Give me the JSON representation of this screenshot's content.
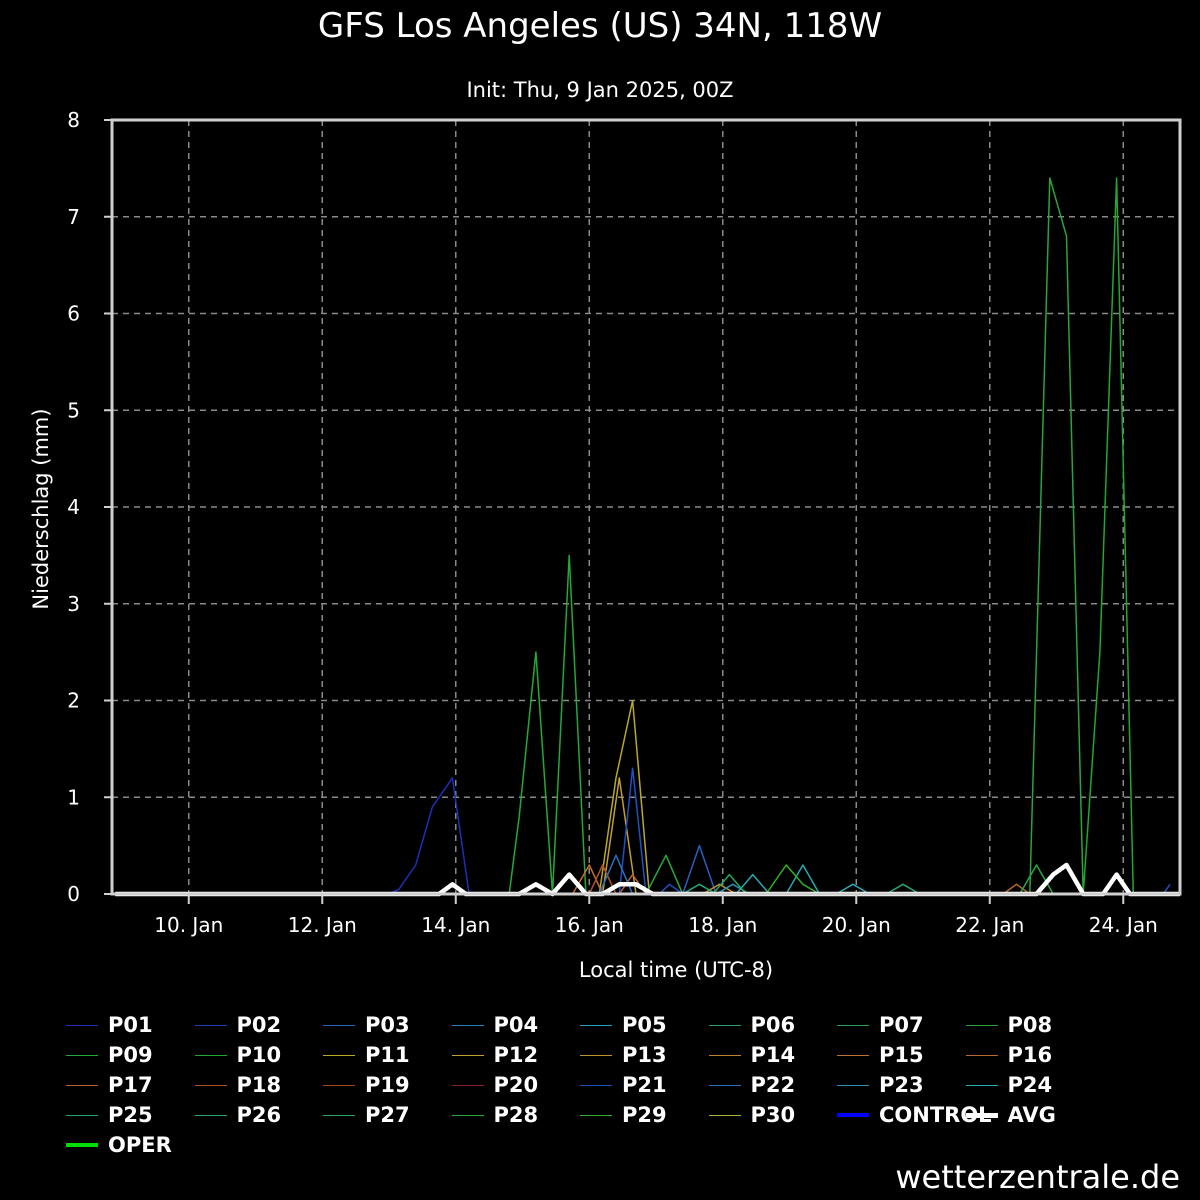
{
  "title": "GFS Los Angeles (US) 34N, 118W",
  "subtitle": "Init: Thu, 9 Jan 2025, 00Z",
  "footer": "wetterzentrale.de",
  "chart_data": {
    "type": "line",
    "title": "GFS Los Angeles (US) 34N, 118W",
    "subtitle": "Init: Thu, 9 Jan 2025, 00Z",
    "xlabel": "Local time (UTC-8)",
    "ylabel": "Niederschlag (mm)",
    "ylim": [
      0,
      8
    ],
    "xlim": [
      8.85,
      24.85
    ],
    "yticks": [
      0,
      1,
      2,
      3,
      4,
      5,
      6,
      7,
      8
    ],
    "xticks": [
      {
        "value": 10,
        "label": "10. Jan"
      },
      {
        "value": 12,
        "label": "12. Jan"
      },
      {
        "value": 14,
        "label": "14. Jan"
      },
      {
        "value": 16,
        "label": "16. Jan"
      },
      {
        "value": 18,
        "label": "18. Jan"
      },
      {
        "value": 20,
        "label": "20. Jan"
      },
      {
        "value": 22,
        "label": "22. Jan"
      },
      {
        "value": 24,
        "label": "24. Jan"
      }
    ],
    "grid": true,
    "legend_position": "bottom",
    "series": [
      {
        "name": "P01",
        "color": "#1c2fb8",
        "width": 1.5,
        "points": [
          [
            8.9,
            0
          ],
          [
            13.0,
            0
          ],
          [
            13.15,
            0.05
          ],
          [
            13.4,
            0.3
          ],
          [
            13.65,
            0.9
          ],
          [
            13.95,
            1.2
          ],
          [
            14.2,
            0
          ],
          [
            24.85,
            0
          ]
        ]
      },
      {
        "name": "P02",
        "color": "#2040c0",
        "width": 1.5,
        "points": [
          [
            8.9,
            0
          ],
          [
            24.85,
            0
          ]
        ]
      },
      {
        "name": "P03",
        "color": "#2a5fbf",
        "width": 1.5,
        "points": [
          [
            8.9,
            0
          ],
          [
            17.4,
            0
          ],
          [
            17.65,
            0.5
          ],
          [
            17.9,
            0
          ],
          [
            24.85,
            0
          ]
        ]
      },
      {
        "name": "P04",
        "color": "#2a7fbf",
        "width": 1.5,
        "points": [
          [
            8.9,
            0
          ],
          [
            24.85,
            0
          ]
        ]
      },
      {
        "name": "P05",
        "color": "#2aa0bf",
        "width": 1.5,
        "points": [
          [
            8.9,
            0
          ],
          [
            24.85,
            0
          ]
        ]
      },
      {
        "name": "P06",
        "color": "#2a9f70",
        "width": 1.5,
        "points": [
          [
            8.9,
            0
          ],
          [
            24.85,
            0
          ]
        ]
      },
      {
        "name": "P07",
        "color": "#2a9f50",
        "width": 1.5,
        "points": [
          [
            8.9,
            0
          ],
          [
            24.85,
            0
          ]
        ]
      },
      {
        "name": "P08",
        "color": "#2ba43a",
        "width": 1.5,
        "points": [
          [
            8.9,
            0
          ],
          [
            22.6,
            0
          ],
          [
            22.9,
            7.4
          ],
          [
            23.15,
            6.8
          ],
          [
            23.4,
            0
          ],
          [
            24.85,
            0
          ]
        ]
      },
      {
        "name": "P09",
        "color": "#24a838",
        "width": 1.5,
        "points": [
          [
            8.9,
            0
          ],
          [
            14.8,
            0
          ],
          [
            14.95,
            0.8
          ],
          [
            15.2,
            2.5
          ],
          [
            15.45,
            0
          ],
          [
            15.7,
            3.5
          ],
          [
            15.95,
            0
          ],
          [
            24.85,
            0
          ]
        ]
      },
      {
        "name": "P10",
        "color": "#20a830",
        "width": 1.5,
        "points": [
          [
            8.9,
            0
          ],
          [
            23.4,
            0
          ],
          [
            23.65,
            2.5
          ],
          [
            23.9,
            7.4
          ],
          [
            24.15,
            0
          ],
          [
            24.85,
            0
          ]
        ]
      },
      {
        "name": "P11",
        "color": "#b8a827",
        "width": 1.5,
        "points": [
          [
            8.9,
            0
          ],
          [
            16.15,
            0
          ],
          [
            16.4,
            1.2
          ],
          [
            16.65,
            2.0
          ],
          [
            16.9,
            0
          ],
          [
            24.85,
            0
          ]
        ]
      },
      {
        "name": "P12",
        "color": "#c0a030",
        "width": 1.5,
        "points": [
          [
            8.9,
            0
          ],
          [
            16.2,
            0
          ],
          [
            16.45,
            1.2
          ],
          [
            16.7,
            0
          ],
          [
            24.85,
            0
          ]
        ]
      },
      {
        "name": "P13",
        "color": "#c09030",
        "width": 1.5,
        "points": [
          [
            8.9,
            0
          ],
          [
            17.7,
            0
          ],
          [
            17.95,
            0.1
          ],
          [
            18.2,
            0
          ],
          [
            24.85,
            0
          ]
        ]
      },
      {
        "name": "P14",
        "color": "#c08030",
        "width": 1.5,
        "points": [
          [
            8.9,
            0
          ],
          [
            24.85,
            0
          ]
        ]
      },
      {
        "name": "P15",
        "color": "#c07030",
        "width": 1.5,
        "points": [
          [
            8.9,
            0
          ],
          [
            15.75,
            0
          ],
          [
            16.0,
            0.3
          ],
          [
            16.2,
            0
          ],
          [
            24.85,
            0
          ]
        ]
      },
      {
        "name": "P16",
        "color": "#b86a30",
        "width": 1.5,
        "points": [
          [
            8.9,
            0
          ],
          [
            22.2,
            0
          ],
          [
            22.4,
            0.1
          ],
          [
            22.6,
            0
          ],
          [
            24.85,
            0
          ]
        ]
      },
      {
        "name": "P17",
        "color": "#b86030",
        "width": 1.5,
        "points": [
          [
            8.9,
            0
          ],
          [
            16.45,
            0
          ],
          [
            16.65,
            0.2
          ],
          [
            16.85,
            0
          ],
          [
            24.85,
            0
          ]
        ]
      },
      {
        "name": "P18",
        "color": "#b05028",
        "width": 1.5,
        "points": [
          [
            8.9,
            0
          ],
          [
            16.0,
            0
          ],
          [
            16.2,
            0.3
          ],
          [
            16.4,
            0
          ],
          [
            24.85,
            0
          ]
        ]
      },
      {
        "name": "P19",
        "color": "#a84020",
        "width": 1.5,
        "points": [
          [
            8.9,
            0
          ],
          [
            24.85,
            0
          ]
        ]
      },
      {
        "name": "P20",
        "color": "#8a2020",
        "width": 1.5,
        "points": [
          [
            8.9,
            0
          ],
          [
            24.85,
            0
          ]
        ]
      },
      {
        "name": "P21",
        "color": "#2050c0",
        "width": 1.5,
        "points": [
          [
            8.9,
            0
          ],
          [
            16.45,
            0
          ],
          [
            16.65,
            1.3
          ],
          [
            16.85,
            0
          ],
          [
            17.05,
            0
          ],
          [
            17.2,
            0.1
          ],
          [
            17.4,
            0
          ],
          [
            24.6,
            0
          ],
          [
            24.7,
            0.1
          ]
        ]
      },
      {
        "name": "P22",
        "color": "#2a70c0",
        "width": 1.5,
        "points": [
          [
            8.9,
            0
          ],
          [
            16.15,
            0
          ],
          [
            16.4,
            0.4
          ],
          [
            16.65,
            0
          ],
          [
            24.85,
            0
          ]
        ]
      },
      {
        "name": "P23",
        "color": "#2a90b0",
        "width": 1.5,
        "points": [
          [
            8.9,
            0
          ],
          [
            17.9,
            0
          ],
          [
            18.15,
            0.1
          ],
          [
            18.4,
            0
          ],
          [
            24.85,
            0
          ]
        ]
      },
      {
        "name": "P24",
        "color": "#28a8b0",
        "width": 1.5,
        "points": [
          [
            8.9,
            0
          ],
          [
            18.2,
            0
          ],
          [
            18.45,
            0.2
          ],
          [
            18.7,
            0
          ],
          [
            18.95,
            0
          ],
          [
            19.2,
            0.3
          ],
          [
            19.45,
            0
          ],
          [
            19.7,
            0
          ],
          [
            19.95,
            0.1
          ],
          [
            20.2,
            0
          ],
          [
            24.85,
            0
          ]
        ]
      },
      {
        "name": "P25",
        "color": "#24a880",
        "width": 1.5,
        "points": [
          [
            8.9,
            0
          ],
          [
            17.4,
            0
          ],
          [
            17.65,
            0.1
          ],
          [
            17.9,
            0
          ],
          [
            24.85,
            0
          ]
        ]
      },
      {
        "name": "P26",
        "color": "#26a870",
        "width": 1.5,
        "points": [
          [
            8.9,
            0
          ],
          [
            20.45,
            0
          ],
          [
            20.7,
            0.1
          ],
          [
            20.95,
            0
          ],
          [
            24.85,
            0
          ]
        ]
      },
      {
        "name": "P27",
        "color": "#26a858",
        "width": 1.5,
        "points": [
          [
            8.9,
            0
          ],
          [
            17.85,
            0
          ],
          [
            18.1,
            0.2
          ],
          [
            18.35,
            0
          ],
          [
            24.85,
            0
          ]
        ]
      },
      {
        "name": "P28",
        "color": "#28a840",
        "width": 1.5,
        "points": [
          [
            8.9,
            0
          ],
          [
            16.85,
            0
          ],
          [
            17.15,
            0.4
          ],
          [
            17.4,
            0
          ],
          [
            22.45,
            0
          ],
          [
            22.7,
            0.3
          ],
          [
            22.95,
            0
          ],
          [
            24.85,
            0
          ]
        ]
      },
      {
        "name": "P29",
        "color": "#30b028",
        "width": 1.5,
        "points": [
          [
            8.9,
            0
          ],
          [
            18.65,
            0
          ],
          [
            18.95,
            0.3
          ],
          [
            19.2,
            0.1
          ],
          [
            19.45,
            0
          ],
          [
            24.85,
            0
          ]
        ]
      },
      {
        "name": "P30",
        "color": "#b0b030",
        "width": 1.5,
        "points": [
          [
            8.9,
            0
          ],
          [
            24.85,
            0
          ]
        ]
      },
      {
        "name": "CONTROL",
        "color": "#0000ff",
        "width": 3,
        "points": [
          [
            8.9,
            0
          ],
          [
            24.85,
            0
          ]
        ]
      },
      {
        "name": "OPER",
        "color": "#00dd00",
        "width": 3,
        "points": [
          [
            8.9,
            0
          ],
          [
            24.85,
            0
          ]
        ]
      },
      {
        "name": "AVG",
        "color": "#ffffff",
        "width": 4.5,
        "points": [
          [
            8.9,
            0
          ],
          [
            13.75,
            0
          ],
          [
            13.95,
            0.1
          ],
          [
            14.15,
            0
          ],
          [
            14.95,
            0
          ],
          [
            15.2,
            0.1
          ],
          [
            15.45,
            0
          ],
          [
            15.7,
            0.2
          ],
          [
            15.95,
            0
          ],
          [
            16.2,
            0
          ],
          [
            16.45,
            0.1
          ],
          [
            16.7,
            0.1
          ],
          [
            16.95,
            0
          ],
          [
            22.7,
            0
          ],
          [
            22.95,
            0.2
          ],
          [
            23.15,
            0.3
          ],
          [
            23.4,
            0
          ],
          [
            23.7,
            0
          ],
          [
            23.9,
            0.2
          ],
          [
            24.1,
            0
          ],
          [
            24.85,
            0
          ]
        ]
      }
    ]
  }
}
